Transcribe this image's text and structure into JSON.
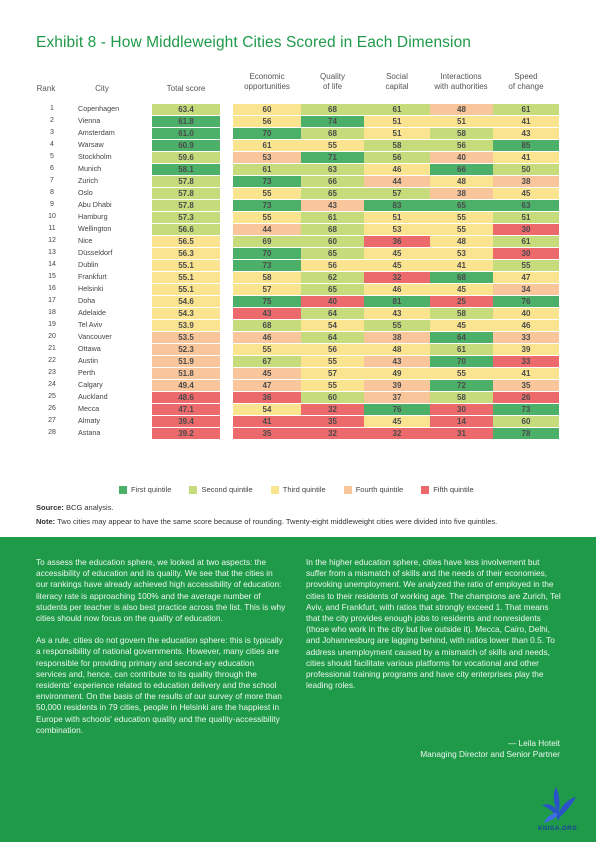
{
  "title": "Exhibit 8 - How Middleweight Cities Scored in Each Dimension",
  "headers": {
    "rank": "Rank",
    "city": "City",
    "total": "Total score",
    "econ": [
      "Economic",
      "opportunities"
    ],
    "qol": [
      "Quality",
      "of life"
    ],
    "social": [
      "Social",
      "capital"
    ],
    "inter": [
      "Interactions",
      "with authorities"
    ],
    "speed": [
      "Speed",
      "of change"
    ]
  },
  "colors": {
    "first": "#4cb069",
    "second": "#c6db7c",
    "third": "#fbe490",
    "fourth": "#f9c59a",
    "fifth": "#ec6a6c"
  },
  "rows": [
    {
      "rank": "1",
      "city": "Copenhagen",
      "total": "63.4",
      "tq": 2,
      "v": [
        "60",
        "68",
        "61",
        "48",
        "61"
      ],
      "q": [
        3,
        2,
        2,
        4,
        2
      ]
    },
    {
      "rank": "2",
      "city": "Vienna",
      "total": "61.8",
      "tq": 1,
      "v": [
        "56",
        "74",
        "51",
        "51",
        "41"
      ],
      "q": [
        3,
        1,
        3,
        3,
        3
      ]
    },
    {
      "rank": "3",
      "city": "Amsterdam",
      "total": "61.0",
      "tq": 1,
      "v": [
        "70",
        "68",
        "51",
        "58",
        "43"
      ],
      "q": [
        1,
        2,
        3,
        2,
        3
      ]
    },
    {
      "rank": "4",
      "city": "Warsaw",
      "total": "60.9",
      "tq": 1,
      "v": [
        "61",
        "55",
        "58",
        "56",
        "85"
      ],
      "q": [
        3,
        3,
        2,
        2,
        1
      ]
    },
    {
      "rank": "5",
      "city": "Stockholm",
      "total": "59.6",
      "tq": 2,
      "v": [
        "53",
        "71",
        "56",
        "40",
        "41"
      ],
      "q": [
        4,
        1,
        2,
        4,
        3
      ]
    },
    {
      "rank": "6",
      "city": "Munich",
      "total": "58.1",
      "tq": 1,
      "v": [
        "61",
        "63",
        "46",
        "66",
        "50"
      ],
      "q": [
        2,
        2,
        3,
        1,
        2
      ]
    },
    {
      "rank": "7",
      "city": "Zurich",
      "total": "57.8",
      "tq": 2,
      "v": [
        "73",
        "66",
        "44",
        "48",
        "38"
      ],
      "q": [
        1,
        2,
        4,
        3,
        4
      ]
    },
    {
      "rank": "8",
      "city": "Oslo",
      "total": "57.8",
      "tq": 2,
      "v": [
        "55",
        "65",
        "57",
        "38",
        "45"
      ],
      "q": [
        3,
        2,
        2,
        4,
        3
      ]
    },
    {
      "rank": "9",
      "city": "Abu Dhabi",
      "total": "57.8",
      "tq": 2,
      "v": [
        "73",
        "43",
        "83",
        "65",
        "63"
      ],
      "q": [
        1,
        4,
        1,
        1,
        1
      ]
    },
    {
      "rank": "10",
      "city": "Hamburg",
      "total": "57.3",
      "tq": 2,
      "v": [
        "55",
        "61",
        "51",
        "55",
        "51"
      ],
      "q": [
        3,
        2,
        3,
        3,
        2
      ]
    },
    {
      "rank": "11",
      "city": "Wellington",
      "total": "56.6",
      "tq": 2,
      "v": [
        "44",
        "68",
        "53",
        "55",
        "30"
      ],
      "q": [
        4,
        2,
        3,
        3,
        5
      ]
    },
    {
      "rank": "12",
      "city": "Nice",
      "total": "56.5",
      "tq": 3,
      "v": [
        "69",
        "60",
        "36",
        "48",
        "61"
      ],
      "q": [
        2,
        2,
        5,
        3,
        2
      ]
    },
    {
      "rank": "13",
      "city": "Düsseldorf",
      "total": "56.3",
      "tq": 3,
      "v": [
        "70",
        "65",
        "45",
        "53",
        "30"
      ],
      "q": [
        1,
        2,
        3,
        3,
        5
      ]
    },
    {
      "rank": "14",
      "city": "Dublin",
      "total": "55.1",
      "tq": 3,
      "v": [
        "73",
        "56",
        "45",
        "41",
        "55"
      ],
      "q": [
        1,
        3,
        3,
        3,
        2
      ]
    },
    {
      "rank": "15",
      "city": "Frankfurt",
      "total": "55.1",
      "tq": 3,
      "v": [
        "58",
        "62",
        "32",
        "68",
        "47"
      ],
      "q": [
        3,
        2,
        5,
        1,
        3
      ]
    },
    {
      "rank": "16",
      "city": "Helsinki",
      "total": "55.1",
      "tq": 3,
      "v": [
        "57",
        "65",
        "46",
        "45",
        "34"
      ],
      "q": [
        3,
        2,
        3,
        3,
        4
      ]
    },
    {
      "rank": "17",
      "city": "Doha",
      "total": "54.6",
      "tq": 3,
      "v": [
        "75",
        "40",
        "81",
        "25",
        "76"
      ],
      "q": [
        1,
        5,
        1,
        5,
        1
      ]
    },
    {
      "rank": "18",
      "city": "Adelaide",
      "total": "54.3",
      "tq": 3,
      "v": [
        "43",
        "64",
        "43",
        "58",
        "40"
      ],
      "q": [
        5,
        2,
        3,
        2,
        3
      ]
    },
    {
      "rank": "19",
      "city": "Tel Aviv",
      "total": "53.9",
      "tq": 3,
      "v": [
        "68",
        "54",
        "55",
        "45",
        "46"
      ],
      "q": [
        2,
        3,
        2,
        3,
        3
      ]
    },
    {
      "rank": "20",
      "city": "Vancouver",
      "total": "53.5",
      "tq": 4,
      "v": [
        "46",
        "64",
        "38",
        "64",
        "33"
      ],
      "q": [
        4,
        2,
        4,
        1,
        4
      ]
    },
    {
      "rank": "21",
      "city": "Ottawa",
      "total": "52.3",
      "tq": 4,
      "v": [
        "55",
        "56",
        "48",
        "61",
        "39"
      ],
      "q": [
        3,
        3,
        3,
        2,
        3
      ]
    },
    {
      "rank": "22",
      "city": "Austin",
      "total": "51.9",
      "tq": 4,
      "v": [
        "67",
        "55",
        "43",
        "70",
        "33"
      ],
      "q": [
        2,
        3,
        4,
        1,
        5
      ]
    },
    {
      "rank": "23",
      "city": "Perth",
      "total": "51.8",
      "tq": 4,
      "v": [
        "45",
        "57",
        "49",
        "55",
        "41"
      ],
      "q": [
        4,
        3,
        3,
        3,
        3
      ]
    },
    {
      "rank": "24",
      "city": "Calgary",
      "total": "49.4",
      "tq": 4,
      "v": [
        "47",
        "55",
        "39",
        "72",
        "35"
      ],
      "q": [
        4,
        3,
        4,
        1,
        4
      ]
    },
    {
      "rank": "25",
      "city": "Auckland",
      "total": "48.6",
      "tq": 5,
      "v": [
        "36",
        "60",
        "37",
        "58",
        "26"
      ],
      "q": [
        5,
        2,
        4,
        2,
        5
      ]
    },
    {
      "rank": "26",
      "city": "Mecca",
      "total": "47.1",
      "tq": 5,
      "v": [
        "54",
        "32",
        "76",
        "30",
        "73"
      ],
      "q": [
        3,
        5,
        1,
        5,
        1
      ]
    },
    {
      "rank": "27",
      "city": "Almaty",
      "total": "39.4",
      "tq": 5,
      "v": [
        "41",
        "35",
        "45",
        "14",
        "60"
      ],
      "q": [
        5,
        5,
        3,
        5,
        2
      ]
    },
    {
      "rank": "28",
      "city": "Astana",
      "total": "39.2",
      "tq": 5,
      "v": [
        "35",
        "32",
        "32",
        "31",
        "78"
      ],
      "q": [
        5,
        5,
        5,
        5,
        1
      ]
    }
  ],
  "legend": [
    "First quintile",
    "Second quintile",
    "Third quintile",
    "Fourth quintile",
    "Fifth quintile"
  ],
  "source_label": "Source:",
  "source_text": " BCG analysis.",
  "note_label": "Note:",
  "note_text": " Two cities may appear to have the same score because of rounding. Twenty-eight middleweight cities were divided into five quintiles.",
  "left_column": [
    "To assess the education sphere, we looked at two aspects: the accessibility of education and its quality. We see that the cities in our rankings have already achieved high accessibility of education: literacy rate is approaching 100% and the average number of students per teacher is also best practice across the list. This is why cities should now focus on the quality of education.",
    "As a rule, cities do not govern the education sphere: this is typically a responsibility of national governments. However, many cities are responsible for providing primary and second-ary education services and, hence, can contribute to its quality through the residents' experience related to education delivery and the school environment. On the basis of the results of our survey of more than 50,000 residents in 79 cities, people in Helsinki are the happiest in Europe with schools' education quality and the quality-accessibility combination."
  ],
  "right_column": [
    "In the higher education sphere, cities have less involvement but suffer from a mismatch of skills and the needs of their economies, provoking unemployment. We analyzed the ratio of employed in the cities to their residents of working age. The champions are Zurich, Tel Aviv, and Frankfurt, with ratios that strongly exceed 1. That means that the city provides enough jobs to residents and nonresidents (those who work in the city but live outside it). Mecca, Cairo, Delhi, and Johannesburg are lagging behind, with ratios lower than 0.5. To address unemployment caused by a mismatch of skills and needs, cities should facilitate various platforms for vocational and other professional training programs and have city enterprises play the leading roles."
  ],
  "signature": {
    "name": "— Leila Hoteit",
    "role": "Managing Director and Senior Partner"
  },
  "logo_text": "KNIGA.ORG",
  "logo_icon": "butterfly-icon"
}
